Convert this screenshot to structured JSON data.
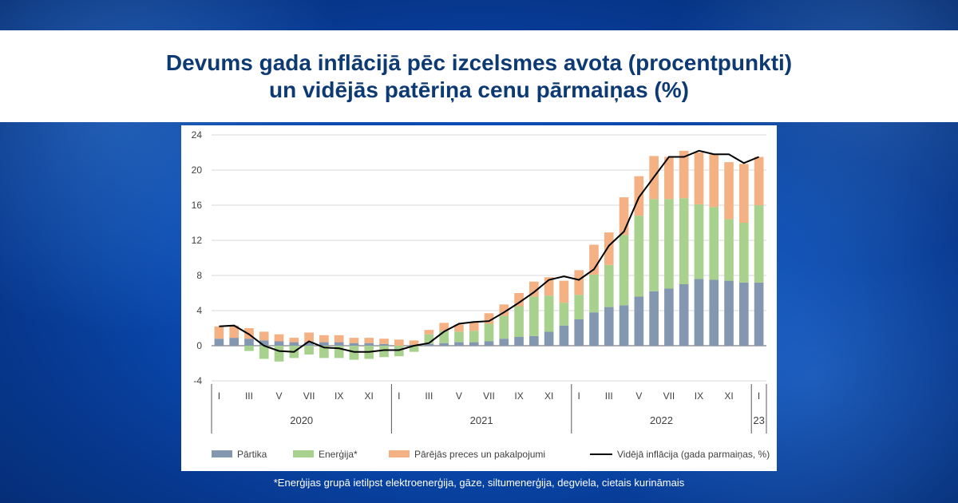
{
  "title": {
    "line1": "Devums gada inflācijā pēc izcelsmes avota (procentpunkti)",
    "line2": "un vidējās patēriņa cenu pārmaiņas (%)"
  },
  "footnote": "*Enerģijas grupā ietilpst elektroenerģija, gāze, siltumenerģija, degviela, cietais kurināmais",
  "chart_data": {
    "type": "bar",
    "stacked": true,
    "y_range": [
      -4,
      24
    ],
    "y_ticks": [
      -4,
      0,
      4,
      8,
      12,
      16,
      20,
      24
    ],
    "grid": true,
    "legend_position": "bottom",
    "categories": [
      "2020-I",
      "2020-II",
      "2020-III",
      "2020-IV",
      "2020-V",
      "2020-VI",
      "2020-VII",
      "2020-VIII",
      "2020-IX",
      "2020-X",
      "2020-XI",
      "2020-XII",
      "2021-I",
      "2021-II",
      "2021-III",
      "2021-IV",
      "2021-V",
      "2021-VI",
      "2021-VII",
      "2021-VIII",
      "2021-IX",
      "2021-X",
      "2021-XI",
      "2021-XII",
      "2022-I",
      "2022-II",
      "2022-III",
      "2022-IV",
      "2022-V",
      "2022-VI",
      "2022-VII",
      "2022-VIII",
      "2022-IX",
      "2022-X",
      "2022-XI",
      "2022-XII",
      "2023-I"
    ],
    "month_tick_labels": [
      "I",
      "III",
      "V",
      "VII",
      "IX",
      "XI",
      "I",
      "III",
      "V",
      "VII",
      "IX",
      "XI",
      "I",
      "III",
      "V",
      "VII",
      "IX",
      "XI",
      "I"
    ],
    "month_tick_indices": [
      0,
      2,
      4,
      6,
      8,
      10,
      12,
      14,
      16,
      18,
      20,
      22,
      24,
      26,
      28,
      30,
      32,
      34,
      36
    ],
    "years": [
      {
        "label": "2020",
        "start": 0,
        "end": 11
      },
      {
        "label": "2021",
        "start": 12,
        "end": 23
      },
      {
        "label": "2022",
        "start": 24,
        "end": 35
      },
      {
        "label": "23",
        "start": 36,
        "end": 36
      }
    ],
    "series": [
      {
        "name": "Pārtika",
        "color": "#8497b0",
        "values": [
          0.8,
          0.9,
          0.8,
          0.6,
          0.5,
          0.4,
          0.4,
          0.4,
          0.4,
          0.3,
          0.3,
          0.2,
          0.0,
          0.1,
          0.2,
          0.3,
          0.4,
          0.4,
          0.5,
          0.8,
          1.0,
          1.1,
          1.6,
          2.3,
          3.0,
          3.8,
          4.4,
          4.6,
          5.6,
          6.2,
          6.5,
          7.0,
          7.6,
          7.5,
          7.4,
          7.2,
          7.2
        ]
      },
      {
        "name": "Enerģija*",
        "color": "#a9d18e",
        "values": [
          0.0,
          0.0,
          -0.6,
          -1.5,
          -1.8,
          -1.4,
          -1.0,
          -1.4,
          -1.4,
          -1.6,
          -1.5,
          -1.3,
          -1.2,
          -0.7,
          1.1,
          1.4,
          1.2,
          1.3,
          2.0,
          2.6,
          3.5,
          4.5,
          4.1,
          2.6,
          2.8,
          4.3,
          4.8,
          8.0,
          9.2,
          10.5,
          10.2,
          9.8,
          8.5,
          8.3,
          7.0,
          6.8,
          8.8
        ]
      },
      {
        "name": "Pārējās preces un pakalpojumi",
        "color": "#f4b183",
        "values": [
          1.4,
          1.4,
          1.2,
          1.0,
          0.8,
          0.5,
          1.1,
          0.8,
          0.8,
          0.6,
          0.6,
          0.6,
          0.7,
          0.5,
          0.5,
          0.9,
          0.8,
          1.0,
          1.2,
          1.3,
          1.5,
          1.7,
          2.1,
          2.5,
          2.8,
          3.4,
          3.7,
          4.3,
          4.5,
          4.9,
          4.8,
          5.4,
          5.9,
          6.0,
          6.5,
          6.7,
          5.5
        ]
      }
    ],
    "line": {
      "name": "Vidējā inflācija (gada parmaiņas, %)",
      "color": "#000000",
      "values": [
        2.2,
        2.3,
        1.3,
        0.0,
        -0.6,
        -0.7,
        0.5,
        -0.2,
        -0.3,
        -0.7,
        -0.7,
        -0.5,
        -0.5,
        0.0,
        0.3,
        1.6,
        2.5,
        2.7,
        2.8,
        3.8,
        4.9,
        6.1,
        7.5,
        7.9,
        7.5,
        8.7,
        11.4,
        13.0,
        16.9,
        19.2,
        21.5,
        21.5,
        22.2,
        21.8,
        21.8,
        20.8,
        21.5
      ]
    }
  }
}
